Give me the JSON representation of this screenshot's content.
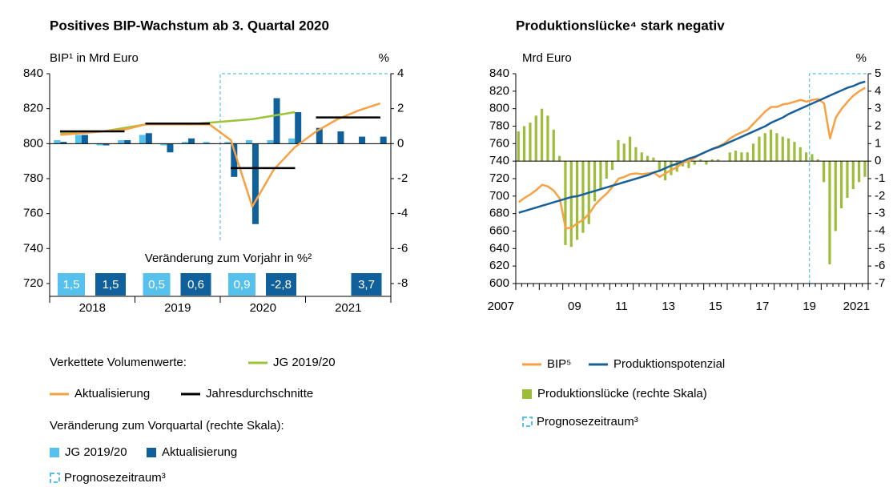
{
  "chart_data": [
    {
      "type": "combo",
      "title": "Positives BIP-Wachstum ab 3. Quartal 2020",
      "ylabel": "BIP¹ in Mrd Euro",
      "y2label": "%",
      "ylim": [
        720,
        840
      ],
      "yticks": [
        720,
        740,
        760,
        780,
        800,
        820,
        840
      ],
      "y2lim": [
        -8,
        4
      ],
      "y2ticks": [
        -8,
        -6,
        -4,
        -2,
        0,
        2,
        4
      ],
      "year_labels": [
        "2018",
        "2019",
        "2020",
        "2021"
      ],
      "series": [
        {
          "name": "JG 2019/20",
          "type": "line",
          "color": "#9dc33b",
          "values": [
            806,
            807,
            807,
            809,
            811,
            811.5,
            811,
            812,
            813,
            814,
            816,
            818,
            null,
            null,
            null,
            null
          ]
        },
        {
          "name": "Aktualisierung",
          "type": "line",
          "color": "#f7a143",
          "values": [
            805,
            806,
            807,
            808,
            811,
            811,
            811,
            811,
            802,
            764,
            785,
            798,
            807,
            814,
            819,
            823
          ]
        },
        {
          "name": "Jahresdurchschnitte",
          "type": "annual",
          "color": "#000000",
          "values": [
            807,
            811.5,
            786,
            815
          ]
        },
        {
          "name": "JG 2019/20",
          "type": "bar",
          "axis": "y2",
          "color": "#56c1ec",
          "values": [
            0.2,
            0.5,
            -0.1,
            0.2,
            0.5,
            -0.1,
            0.1,
            0.1,
            0.1,
            0.2,
            0.2,
            0.3,
            null,
            null,
            null,
            null
          ]
        },
        {
          "name": "Aktualisierung",
          "type": "bar",
          "axis": "y2",
          "color": "#10609b",
          "values": [
            0.1,
            0.5,
            -0.1,
            0.2,
            0.6,
            -0.5,
            0.3,
            0.0,
            -1.9,
            -4.6,
            2.6,
            1.8,
            0.9,
            0.7,
            0.4,
            0.4
          ]
        }
      ],
      "annual_changes": {
        "title": "Veränderung zum Vorjahr in %²",
        "series": [
          {
            "color": "#56c1ec",
            "values": [
              1.5,
              0.5,
              0.9,
              null
            ],
            "value_labels": [
              "1,5",
              "0,5",
              "0,9",
              null
            ]
          },
          {
            "color": "#10609b",
            "values": [
              1.5,
              0.6,
              -2.8,
              3.7
            ],
            "value_labels": [
              "1,5",
              "0,6",
              "-2,8",
              "3,7"
            ]
          }
        ]
      },
      "legend_headings": [
        "Verkettete Volumenwerte:",
        "Veränderung zum Vorquartal (rechte Skala):"
      ],
      "forecast_label": "Prognosezeitraum³",
      "forecast_color": "#56c1ec"
    },
    {
      "type": "combo",
      "title": "Produktionslücke⁴ stark negativ",
      "ylabel": "Mrd Euro",
      "y2label": "%",
      "ylim": [
        600,
        840
      ],
      "yticks": [
        600,
        620,
        640,
        660,
        680,
        700,
        720,
        740,
        760,
        780,
        800,
        820,
        840
      ],
      "y2lim": [
        -7,
        5
      ],
      "y2ticks": [
        -7,
        -6,
        -5,
        -4,
        -3,
        -2,
        -1,
        0,
        1,
        2,
        3,
        4,
        5
      ],
      "year_labels": [
        "2007",
        null,
        "09",
        null,
        "11",
        null,
        "13",
        null,
        "15",
        null,
        "17",
        null,
        "19",
        null,
        "2021"
      ],
      "series": [
        {
          "name": "Produktionslücke (rechte Skala)",
          "type": "bar",
          "axis": "y2",
          "color": "#9bbd37",
          "values": [
            1.7,
            2.0,
            2.2,
            2.6,
            3.0,
            2.6,
            1.8,
            0.3,
            -4.8,
            -4.9,
            -4.5,
            -4.1,
            -3.6,
            -2.3,
            -1.6,
            -1.0,
            -0.5,
            1.2,
            1.0,
            1.4,
            0.8,
            0.5,
            0.3,
            0.2,
            -0.6,
            -1.1,
            -0.8,
            -0.6,
            -0.3,
            -0.4,
            -0.2,
            0.1,
            -0.2,
            0.1,
            0.1,
            0.0,
            0.5,
            0.6,
            0.5,
            0.5,
            1.0,
            1.4,
            1.6,
            1.8,
            1.6,
            1.4,
            1.3,
            1.1,
            0.8,
            0.5,
            0.4,
            0.1,
            -1.2,
            -5.9,
            -4.0,
            -2.7,
            -2.1,
            -1.6,
            -1.2,
            -0.9
          ]
        },
        {
          "name": "BIP⁵",
          "type": "line",
          "color": "#f7a143",
          "values": [
            693,
            698,
            702,
            707,
            713,
            711,
            706,
            697,
            663,
            664,
            669,
            673,
            680,
            690,
            697,
            703,
            711,
            720,
            722,
            725,
            726,
            725,
            726,
            727,
            722,
            726,
            730,
            733,
            739,
            740,
            744,
            748,
            751,
            754,
            757,
            760,
            766,
            770,
            773,
            776,
            783,
            790,
            797,
            802,
            802,
            805,
            806,
            808,
            810,
            808,
            810,
            811,
            806,
            766,
            790,
            800,
            808,
            815,
            820,
            824
          ]
        },
        {
          "name": "Produktionspotenzial",
          "type": "line",
          "color": "#17609a",
          "values": [
            681,
            683,
            685,
            687,
            689,
            691,
            693,
            695,
            697,
            699,
            700,
            702,
            704,
            706,
            708,
            710,
            712,
            714,
            716,
            718,
            720,
            722,
            724,
            727,
            729,
            732,
            735,
            737,
            740,
            743,
            745,
            748,
            751,
            754,
            756,
            759,
            762,
            765,
            768,
            771,
            774,
            777,
            780,
            784,
            787,
            790,
            794,
            797,
            800,
            803,
            806,
            809,
            812,
            815,
            818,
            821,
            824,
            826,
            829,
            831
          ]
        }
      ],
      "forecast_label": "Prognosezeitraum³",
      "forecast_color": "#56c1ec"
    }
  ]
}
